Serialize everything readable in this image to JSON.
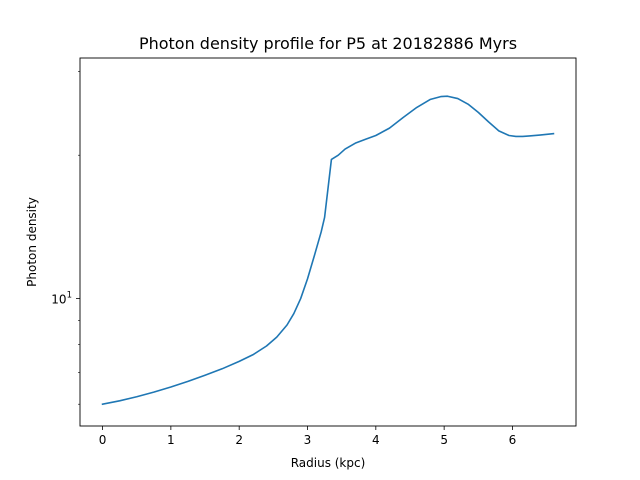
{
  "chart_data": {
    "type": "line",
    "title": "Photon density profile for P5 at 20182886 Myrs",
    "xlabel": "Radius (kpc)",
    "ylabel": "Photon density",
    "xlim": [
      -0.33,
      6.93
    ],
    "ylim": [
      5.4,
      32.0
    ],
    "yscale": "log",
    "grid": false,
    "x_ticks": [
      0,
      1,
      2,
      3,
      4,
      5,
      6
    ],
    "y_ticks": [
      {
        "value": 10,
        "base": "10",
        "exponent": "1"
      }
    ],
    "series": [
      {
        "color": "#1f77b4",
        "x": [
          0.0,
          0.25,
          0.5,
          0.75,
          1.0,
          1.25,
          1.5,
          1.75,
          2.0,
          2.2,
          2.4,
          2.55,
          2.7,
          2.8,
          2.9,
          3.0,
          3.1,
          3.2,
          3.25,
          3.35,
          3.45,
          3.55,
          3.7,
          3.85,
          4.0,
          4.2,
          4.4,
          4.6,
          4.8,
          4.95,
          5.05,
          5.2,
          5.35,
          5.5,
          5.65,
          5.8,
          5.95,
          6.05,
          6.15,
          6.25,
          6.4,
          6.6
        ],
        "y": [
          6.0,
          6.1,
          6.22,
          6.36,
          6.52,
          6.7,
          6.9,
          7.12,
          7.38,
          7.62,
          7.95,
          8.3,
          8.8,
          9.3,
          10.0,
          11.0,
          12.3,
          13.8,
          14.8,
          19.6,
          20.0,
          20.6,
          21.2,
          21.6,
          22.0,
          22.8,
          24.0,
          25.2,
          26.2,
          26.55,
          26.6,
          26.3,
          25.6,
          24.6,
          23.5,
          22.5,
          22.0,
          21.9,
          21.9,
          21.95,
          22.05,
          22.2
        ]
      }
    ]
  }
}
